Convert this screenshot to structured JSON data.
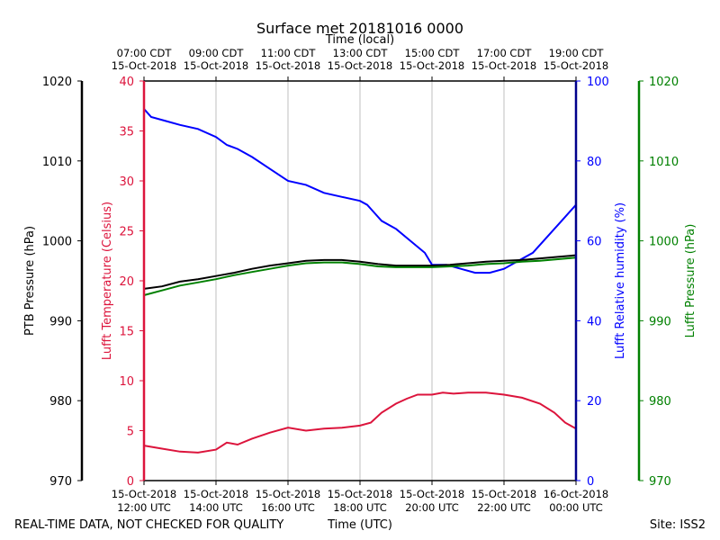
{
  "chart_data": {
    "type": "line",
    "title": "Surface met 20181016 0000",
    "top_axis_title": "Time (local)",
    "bottom_axis_title": "Time (UTC)",
    "footer_left": "REAL-TIME DATA, NOT CHECKED FOR QUALITY",
    "footer_right": "Site: ISS2",
    "x_hours": [
      12,
      24
    ],
    "local_ticks": [
      {
        "hour": 12,
        "line1": "07:00 CDT",
        "line2": "15-Oct-2018"
      },
      {
        "hour": 14,
        "line1": "09:00 CDT",
        "line2": "15-Oct-2018"
      },
      {
        "hour": 16,
        "line1": "11:00 CDT",
        "line2": "15-Oct-2018"
      },
      {
        "hour": 18,
        "line1": "13:00 CDT",
        "line2": "15-Oct-2018"
      },
      {
        "hour": 20,
        "line1": "15:00 CDT",
        "line2": "15-Oct-2018"
      },
      {
        "hour": 22,
        "line1": "17:00 CDT",
        "line2": "15-Oct-2018"
      },
      {
        "hour": 24,
        "line1": "19:00 CDT",
        "line2": "15-Oct-2018"
      }
    ],
    "utc_ticks": [
      {
        "hour": 12,
        "line1": "15-Oct-2018",
        "line2": "12:00 UTC"
      },
      {
        "hour": 14,
        "line1": "15-Oct-2018",
        "line2": "14:00 UTC"
      },
      {
        "hour": 16,
        "line1": "15-Oct-2018",
        "line2": "16:00 UTC"
      },
      {
        "hour": 18,
        "line1": "15-Oct-2018",
        "line2": "18:00 UTC"
      },
      {
        "hour": 20,
        "line1": "15-Oct-2018",
        "line2": "20:00 UTC"
      },
      {
        "hour": 22,
        "line1": "15-Oct-2018",
        "line2": "22:00 UTC"
      },
      {
        "hour": 24,
        "line1": "16-Oct-2018",
        "line2": "00:00 UTC"
      }
    ],
    "axes": {
      "ptb_pressure": {
        "label": "PTB Pressure (hPa)",
        "range": [
          970,
          1020
        ],
        "ticks": [
          "970",
          "980",
          "990",
          "1000",
          "1010",
          "1020"
        ],
        "color": "#000000"
      },
      "temperature": {
        "label": "Lufft Temperature (Celsius)",
        "range": [
          0,
          40
        ],
        "ticks": [
          "0",
          "5",
          "10",
          "15",
          "20",
          "25",
          "30",
          "35",
          "40"
        ],
        "color": "#dc143c"
      },
      "humidity": {
        "label": "Lufft Relative humidity (%)",
        "range": [
          0,
          100
        ],
        "ticks": [
          "0",
          "20",
          "40",
          "60",
          "80",
          "100"
        ],
        "color": "#0000ff"
      },
      "lufft_pressure": {
        "label": "Lufft Pressure (hPa)",
        "range": [
          970,
          1020
        ],
        "ticks": [
          "970",
          "980",
          "990",
          "1000",
          "1010",
          "1020"
        ],
        "color": "#008000"
      }
    },
    "series": [
      {
        "name": "Lufft Temperature",
        "axis": "temperature",
        "color": "#dc143c",
        "points": [
          [
            12,
            3.5
          ],
          [
            12.5,
            3.2
          ],
          [
            13,
            2.9
          ],
          [
            13.5,
            2.8
          ],
          [
            14,
            3.1
          ],
          [
            14.3,
            3.8
          ],
          [
            14.6,
            3.6
          ],
          [
            15,
            4.2
          ],
          [
            15.5,
            4.8
          ],
          [
            16,
            5.3
          ],
          [
            16.5,
            5.0
          ],
          [
            17,
            5.2
          ],
          [
            17.5,
            5.3
          ],
          [
            18,
            5.5
          ],
          [
            18.3,
            5.8
          ],
          [
            18.6,
            6.8
          ],
          [
            19,
            7.7
          ],
          [
            19.3,
            8.2
          ],
          [
            19.6,
            8.6
          ],
          [
            20,
            8.6
          ],
          [
            20.3,
            8.8
          ],
          [
            20.6,
            8.7
          ],
          [
            21,
            8.8
          ],
          [
            21.5,
            8.8
          ],
          [
            22,
            8.6
          ],
          [
            22.5,
            8.3
          ],
          [
            23,
            7.7
          ],
          [
            23.4,
            6.8
          ],
          [
            23.7,
            5.8
          ],
          [
            24,
            5.2
          ]
        ]
      },
      {
        "name": "Lufft Relative humidity",
        "axis": "humidity",
        "color": "#0000ff",
        "points": [
          [
            12,
            93
          ],
          [
            12.2,
            91
          ],
          [
            12.6,
            90
          ],
          [
            13,
            89
          ],
          [
            13.5,
            88
          ],
          [
            14,
            86
          ],
          [
            14.3,
            84
          ],
          [
            14.6,
            83
          ],
          [
            15,
            81
          ],
          [
            15.5,
            78
          ],
          [
            16,
            75
          ],
          [
            16.5,
            74
          ],
          [
            17,
            72
          ],
          [
            17.5,
            71
          ],
          [
            18,
            70
          ],
          [
            18.2,
            69
          ],
          [
            18.4,
            67
          ],
          [
            18.6,
            65
          ],
          [
            19,
            63
          ],
          [
            19.4,
            60
          ],
          [
            19.8,
            57
          ],
          [
            20,
            54
          ],
          [
            20.4,
            54
          ],
          [
            20.8,
            53
          ],
          [
            21.2,
            52
          ],
          [
            21.6,
            52
          ],
          [
            22,
            53
          ],
          [
            22.4,
            55
          ],
          [
            22.8,
            57
          ],
          [
            23.2,
            61
          ],
          [
            23.6,
            65
          ],
          [
            24,
            69
          ]
        ]
      },
      {
        "name": "PTB Pressure",
        "axis": "ptb_pressure",
        "color": "#000000",
        "points": [
          [
            12,
            994
          ],
          [
            12.5,
            994.3
          ],
          [
            13,
            994.9
          ],
          [
            13.5,
            995.2
          ],
          [
            14,
            995.6
          ],
          [
            14.5,
            996
          ],
          [
            15,
            996.5
          ],
          [
            15.5,
            996.9
          ],
          [
            16,
            997.2
          ],
          [
            16.5,
            997.5
          ],
          [
            17,
            997.6
          ],
          [
            17.5,
            997.6
          ],
          [
            18,
            997.4
          ],
          [
            18.5,
            997.1
          ],
          [
            19,
            996.9
          ],
          [
            19.5,
            996.9
          ],
          [
            20,
            996.9
          ],
          [
            20.5,
            997
          ],
          [
            21,
            997.2
          ],
          [
            21.5,
            997.4
          ],
          [
            22,
            997.5
          ],
          [
            22.5,
            997.6
          ],
          [
            23,
            997.8
          ],
          [
            23.5,
            998
          ],
          [
            24,
            998.2
          ]
        ]
      },
      {
        "name": "Lufft Pressure",
        "axis": "lufft_pressure",
        "color": "#008000",
        "points": [
          [
            12,
            993.2
          ],
          [
            12.5,
            993.8
          ],
          [
            13,
            994.4
          ],
          [
            13.5,
            994.8
          ],
          [
            14,
            995.2
          ],
          [
            14.5,
            995.7
          ],
          [
            15,
            996.1
          ],
          [
            15.5,
            996.5
          ],
          [
            16,
            996.9
          ],
          [
            16.5,
            997.2
          ],
          [
            17,
            997.3
          ],
          [
            17.5,
            997.3
          ],
          [
            18,
            997.1
          ],
          [
            18.5,
            996.8
          ],
          [
            19,
            996.7
          ],
          [
            19.5,
            996.7
          ],
          [
            20,
            996.7
          ],
          [
            20.5,
            996.8
          ],
          [
            21,
            996.9
          ],
          [
            21.5,
            997.1
          ],
          [
            22,
            997.2
          ],
          [
            22.5,
            997.4
          ],
          [
            23,
            997.5
          ],
          [
            23.5,
            997.7
          ],
          [
            24,
            997.9
          ]
        ]
      }
    ]
  }
}
